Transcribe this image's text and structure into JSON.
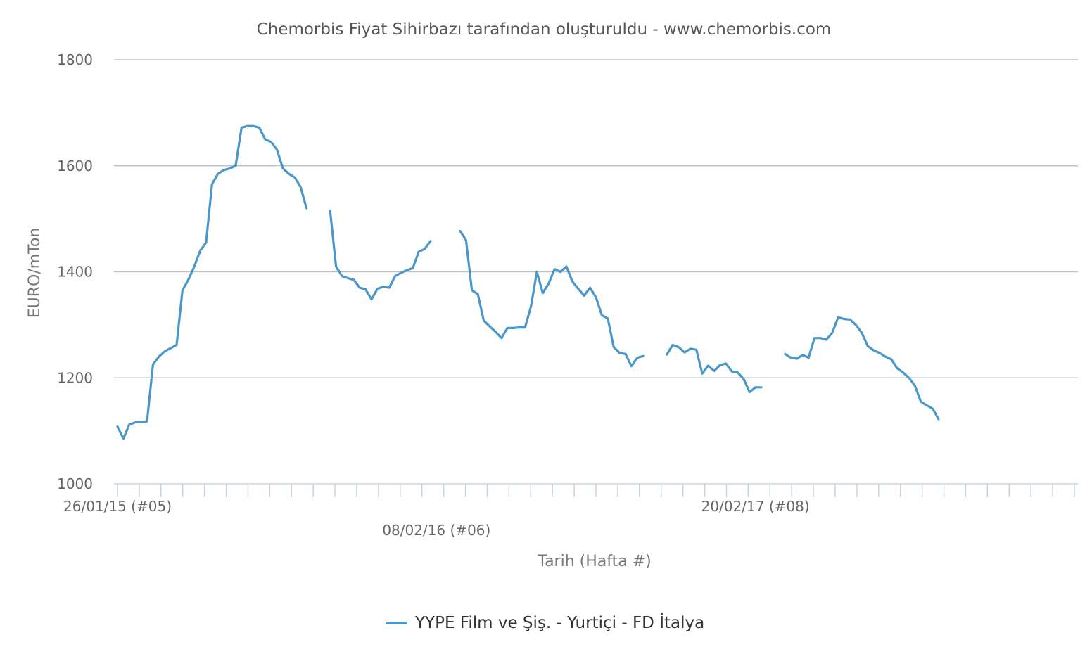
{
  "chart_data": {
    "type": "line",
    "title": "Chemorbis Fiyat Sihirbazı tarafından oluşturuldu - www.chemorbis.com",
    "xlabel": "Tarih (Hafta #)",
    "ylabel": "EURO/mTon",
    "ylim": [
      1000,
      1800
    ],
    "yticks": [
      1000,
      1200,
      1400,
      1600,
      1800
    ],
    "grid": true,
    "legend_position": "bottom-center",
    "x_range_weeks": [
      0,
      162
    ],
    "x_tick_count": 44,
    "x_tick_labels": [
      {
        "week": 0,
        "label": "26/01/15 (#05)"
      },
      {
        "week": 54,
        "label": "08/02/16 (#06)"
      },
      {
        "week": 108,
        "label": "20/02/17 (#08)"
      }
    ],
    "colors": {
      "series": "#4a97c9"
    },
    "series": [
      {
        "name": "YYPE Film ve Şiş. - Yurtiçi - FD İtalya",
        "segments": [
          [
            [
              0,
              1108
            ],
            [
              1,
              1085
            ],
            [
              2,
              1112
            ],
            [
              3,
              1116
            ],
            [
              4,
              1117
            ],
            [
              5,
              1118
            ],
            [
              6,
              1225
            ],
            [
              7,
              1240
            ],
            [
              8,
              1250
            ],
            [
              9,
              1256
            ],
            [
              10,
              1262
            ],
            [
              11,
              1365
            ],
            [
              12,
              1385
            ],
            [
              13,
              1410
            ],
            [
              14,
              1440
            ],
            [
              15,
              1455
            ],
            [
              16,
              1565
            ],
            [
              17,
              1585
            ],
            [
              18,
              1592
            ],
            [
              19,
              1595
            ],
            [
              20,
              1600
            ],
            [
              21,
              1672
            ],
            [
              22,
              1675
            ],
            [
              23,
              1675
            ],
            [
              24,
              1672
            ],
            [
              25,
              1650
            ],
            [
              26,
              1645
            ],
            [
              27,
              1630
            ],
            [
              28,
              1595
            ],
            [
              29,
              1585
            ],
            [
              30,
              1578
            ],
            [
              31,
              1560
            ],
            [
              32,
              1520
            ]
          ],
          [
            [
              36,
              1515
            ],
            [
              37,
              1410
            ],
            [
              38,
              1392
            ],
            [
              39,
              1388
            ],
            [
              40,
              1385
            ],
            [
              41,
              1370
            ],
            [
              42,
              1367
            ],
            [
              43,
              1348
            ],
            [
              44,
              1368
            ],
            [
              45,
              1372
            ],
            [
              46,
              1370
            ],
            [
              47,
              1392
            ],
            [
              48,
              1398
            ],
            [
              49,
              1403
            ],
            [
              50,
              1407
            ],
            [
              51,
              1438
            ],
            [
              52,
              1443
            ],
            [
              53,
              1458
            ]
          ],
          [
            [
              58,
              1477
            ],
            [
              59,
              1460
            ],
            [
              60,
              1365
            ],
            [
              61,
              1358
            ],
            [
              62,
              1308
            ],
            [
              63,
              1297
            ],
            [
              64,
              1287
            ],
            [
              65,
              1275
            ],
            [
              66,
              1294
            ],
            [
              67,
              1294
            ],
            [
              68,
              1295
            ],
            [
              69,
              1295
            ],
            [
              70,
              1335
            ],
            [
              71,
              1400
            ],
            [
              72,
              1360
            ],
            [
              73,
              1378
            ],
            [
              74,
              1405
            ],
            [
              75,
              1400
            ],
            [
              76,
              1410
            ],
            [
              77,
              1382
            ],
            [
              78,
              1368
            ],
            [
              79,
              1355
            ],
            [
              80,
              1370
            ],
            [
              81,
              1352
            ],
            [
              82,
              1318
            ],
            [
              83,
              1312
            ],
            [
              84,
              1258
            ],
            [
              85,
              1247
            ],
            [
              86,
              1245
            ],
            [
              87,
              1222
            ],
            [
              88,
              1238
            ],
            [
              89,
              1241
            ]
          ],
          [
            [
              93,
              1244
            ],
            [
              94,
              1262
            ],
            [
              95,
              1258
            ],
            [
              96,
              1248
            ],
            [
              97,
              1255
            ],
            [
              98,
              1253
            ],
            [
              99,
              1208
            ],
            [
              100,
              1223
            ],
            [
              101,
              1213
            ],
            [
              102,
              1224
            ],
            [
              103,
              1227
            ],
            [
              104,
              1212
            ],
            [
              105,
              1210
            ],
            [
              106,
              1198
            ],
            [
              107,
              1173
            ],
            [
              108,
              1182
            ],
            [
              109,
              1182
            ]
          ],
          [
            [
              113,
              1245
            ],
            [
              114,
              1238
            ],
            [
              115,
              1236
            ],
            [
              116,
              1243
            ],
            [
              117,
              1238
            ],
            [
              118,
              1275
            ],
            [
              119,
              1275
            ],
            [
              120,
              1272
            ],
            [
              121,
              1285
            ],
            [
              122,
              1314
            ],
            [
              123,
              1311
            ],
            [
              124,
              1310
            ],
            [
              125,
              1300
            ],
            [
              126,
              1285
            ],
            [
              127,
              1260
            ],
            [
              128,
              1252
            ],
            [
              129,
              1247
            ],
            [
              130,
              1240
            ],
            [
              131,
              1235
            ],
            [
              132,
              1218
            ],
            [
              133,
              1210
            ],
            [
              134,
              1200
            ],
            [
              135,
              1185
            ],
            [
              136,
              1155
            ],
            [
              137,
              1148
            ],
            [
              138,
              1142
            ],
            [
              139,
              1122
            ]
          ]
        ]
      }
    ]
  }
}
